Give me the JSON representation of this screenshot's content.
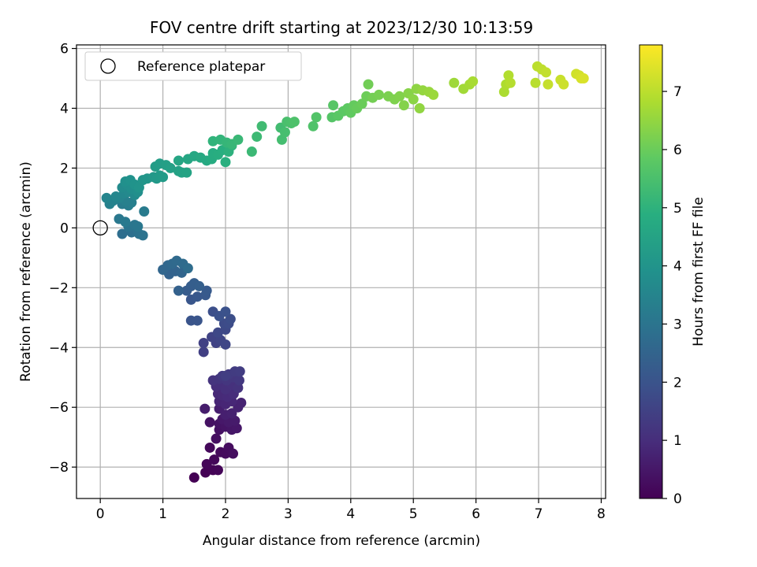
{
  "chart_data": {
    "type": "scatter",
    "title": "FOV centre drift starting at 2023/12/30 10:13:59",
    "xlabel": "Angular distance from reference (arcmin)",
    "ylabel": "Rotation from reference (arcmin)",
    "xlim": [
      -0.38,
      8.07
    ],
    "ylim": [
      -9.05,
      6.12
    ],
    "x_ticks": [
      0,
      1,
      2,
      3,
      4,
      5,
      6,
      7,
      8
    ],
    "y_ticks": [
      -8,
      -6,
      -4,
      -2,
      0,
      2,
      4,
      6
    ],
    "x_tick_labels": [
      "0",
      "1",
      "2",
      "3",
      "4",
      "5",
      "6",
      "7",
      "8"
    ],
    "y_tick_labels": [
      "−8",
      "−6",
      "−4",
      "−2",
      "0",
      "2",
      "4",
      "6"
    ],
    "grid": true,
    "colormap": "viridis",
    "colorbar": {
      "label": "Hours from first FF file",
      "range": [
        0,
        7.8
      ],
      "ticks": [
        0,
        1,
        2,
        3,
        4,
        5,
        6,
        7
      ],
      "tick_labels": [
        "0",
        "1",
        "2",
        "3",
        "4",
        "5",
        "6",
        "7"
      ]
    },
    "legend": {
      "position": "top-left",
      "entries": [
        "Reference platepar"
      ]
    },
    "reference_point": {
      "x": 0,
      "y": 0
    },
    "series": [
      {
        "points": [
          [
            1.5,
            -8.35,
            0.0
          ],
          [
            1.68,
            -8.18,
            0.03
          ],
          [
            1.8,
            -8.1,
            0.06
          ],
          [
            1.88,
            -8.1,
            0.08
          ],
          [
            1.7,
            -7.9,
            0.1
          ],
          [
            1.82,
            -7.75,
            0.13
          ],
          [
            1.75,
            -7.35,
            0.16
          ],
          [
            1.92,
            -7.5,
            0.19
          ],
          [
            2.0,
            -7.55,
            0.22
          ],
          [
            2.05,
            -7.35,
            0.25
          ],
          [
            2.12,
            -7.55,
            0.28
          ],
          [
            1.85,
            -7.05,
            0.31
          ],
          [
            1.9,
            -6.75,
            0.34
          ],
          [
            1.75,
            -6.5,
            0.37
          ],
          [
            1.9,
            -6.55,
            0.4
          ],
          [
            2.0,
            -6.65,
            0.43
          ],
          [
            2.1,
            -6.75,
            0.46
          ],
          [
            2.18,
            -6.7,
            0.49
          ],
          [
            1.95,
            -6.4,
            0.52
          ],
          [
            2.05,
            -6.5,
            0.55
          ],
          [
            2.15,
            -6.45,
            0.58
          ],
          [
            1.67,
            -6.05,
            0.61
          ],
          [
            1.9,
            -6.05,
            0.64
          ],
          [
            2.0,
            -6.25,
            0.67
          ],
          [
            2.1,
            -6.2,
            0.7
          ],
          [
            2.2,
            -6.0,
            0.73
          ],
          [
            2.25,
            -5.85,
            0.76
          ],
          [
            1.9,
            -5.8,
            0.79
          ],
          [
            2.0,
            -5.9,
            0.82
          ],
          [
            2.1,
            -5.8,
            0.85
          ],
          [
            1.88,
            -5.55,
            0.88
          ],
          [
            1.95,
            -5.6,
            0.91
          ],
          [
            2.03,
            -5.65,
            0.94
          ],
          [
            2.13,
            -5.55,
            0.97
          ],
          [
            1.85,
            -5.3,
            1.0
          ],
          [
            1.92,
            -5.25,
            1.03
          ],
          [
            2.0,
            -5.4,
            1.06
          ],
          [
            2.1,
            -5.25,
            1.09
          ],
          [
            2.2,
            -5.35,
            1.12
          ],
          [
            1.8,
            -5.1,
            1.15
          ],
          [
            1.9,
            -5.05,
            1.18
          ],
          [
            2.02,
            -5.1,
            1.21
          ],
          [
            2.12,
            -5.0,
            1.24
          ],
          [
            2.22,
            -5.1,
            1.27
          ],
          [
            1.95,
            -4.95,
            1.3
          ],
          [
            2.05,
            -4.9,
            1.33
          ],
          [
            2.15,
            -4.8,
            1.36
          ],
          [
            2.23,
            -4.8,
            1.39
          ],
          [
            2.0,
            -4.95,
            1.42
          ],
          [
            1.65,
            -4.15,
            1.45
          ],
          [
            1.65,
            -3.85,
            1.48
          ],
          [
            1.85,
            -3.85,
            1.52
          ],
          [
            1.78,
            -3.65,
            1.56
          ],
          [
            1.92,
            -3.75,
            1.6
          ],
          [
            2.0,
            -3.9,
            1.64
          ],
          [
            1.88,
            -3.5,
            1.68
          ],
          [
            2.0,
            -3.4,
            1.72
          ],
          [
            1.98,
            -3.2,
            1.76
          ],
          [
            2.05,
            -3.2,
            1.8
          ],
          [
            2.08,
            -3.05,
            1.84
          ],
          [
            1.8,
            -2.8,
            1.88
          ],
          [
            1.9,
            -2.95,
            1.92
          ],
          [
            2.0,
            -2.8,
            1.96
          ],
          [
            1.45,
            -3.1,
            2.0
          ],
          [
            1.55,
            -3.1,
            2.04
          ],
          [
            1.45,
            -2.4,
            2.08
          ],
          [
            1.55,
            -2.3,
            2.12
          ],
          [
            1.68,
            -2.25,
            2.16
          ],
          [
            1.7,
            -2.1,
            2.2
          ],
          [
            1.38,
            -2.1,
            2.24
          ],
          [
            1.45,
            -1.95,
            2.28
          ],
          [
            1.5,
            -1.85,
            2.32
          ],
          [
            1.58,
            -1.95,
            2.36
          ],
          [
            1.25,
            -2.1,
            2.4
          ],
          [
            1.1,
            -1.55,
            2.44
          ],
          [
            1.2,
            -1.45,
            2.48
          ],
          [
            1.3,
            -1.5,
            2.52
          ],
          [
            1.0,
            -1.4,
            2.56
          ],
          [
            1.08,
            -1.25,
            2.6
          ],
          [
            1.15,
            -1.2,
            2.64
          ],
          [
            1.22,
            -1.1,
            2.68
          ],
          [
            1.32,
            -1.2,
            2.72
          ],
          [
            1.4,
            -1.35,
            2.76
          ],
          [
            0.35,
            -0.2,
            2.8
          ],
          [
            0.5,
            -0.15,
            2.84
          ],
          [
            0.58,
            -0.05,
            2.88
          ],
          [
            0.62,
            -0.2,
            2.92
          ],
          [
            0.68,
            -0.25,
            2.96
          ],
          [
            0.45,
            0.05,
            3.0
          ],
          [
            0.55,
            0.1,
            3.04
          ],
          [
            0.6,
            0.05,
            3.08
          ],
          [
            0.3,
            0.3,
            3.12
          ],
          [
            0.4,
            0.2,
            3.16
          ],
          [
            0.7,
            0.55,
            3.2
          ],
          [
            0.35,
            0.8,
            3.24
          ],
          [
            0.45,
            0.75,
            3.28
          ],
          [
            0.5,
            0.85,
            3.32
          ],
          [
            0.4,
            0.9,
            3.36
          ],
          [
            0.15,
            0.8,
            3.4
          ],
          [
            0.2,
            0.9,
            3.44
          ],
          [
            0.3,
            1.0,
            3.48
          ],
          [
            0.1,
            1.0,
            3.52
          ],
          [
            0.25,
            1.05,
            3.56
          ],
          [
            0.38,
            1.15,
            3.6
          ],
          [
            0.45,
            1.2,
            3.64
          ],
          [
            0.55,
            1.1,
            3.68
          ],
          [
            0.35,
            1.35,
            3.72
          ],
          [
            0.42,
            1.45,
            3.76
          ],
          [
            0.5,
            1.3,
            3.8
          ],
          [
            0.6,
            1.2,
            3.84
          ],
          [
            0.4,
            1.55,
            3.88
          ],
          [
            0.48,
            1.6,
            3.92
          ],
          [
            0.55,
            1.45,
            3.96
          ],
          [
            0.62,
            1.35,
            4.0
          ],
          [
            0.68,
            1.6,
            4.04
          ],
          [
            0.75,
            1.65,
            4.08
          ],
          [
            0.85,
            1.7,
            4.12
          ],
          [
            0.9,
            1.65,
            4.16
          ],
          [
            0.95,
            1.75,
            4.2
          ],
          [
            1.0,
            1.7,
            4.24
          ],
          [
            0.88,
            2.05,
            4.28
          ],
          [
            0.95,
            2.15,
            4.32
          ],
          [
            1.05,
            2.1,
            4.36
          ],
          [
            1.12,
            2.0,
            4.4
          ],
          [
            1.25,
            1.9,
            4.44
          ],
          [
            1.3,
            1.85,
            4.48
          ],
          [
            1.38,
            1.85,
            4.52
          ],
          [
            1.25,
            2.25,
            4.56
          ],
          [
            1.4,
            2.3,
            4.6
          ],
          [
            1.5,
            2.4,
            4.64
          ],
          [
            1.6,
            2.35,
            4.68
          ],
          [
            1.7,
            2.25,
            4.72
          ],
          [
            1.78,
            2.3,
            4.76
          ],
          [
            1.8,
            2.5,
            4.8
          ],
          [
            1.88,
            2.45,
            4.84
          ],
          [
            1.95,
            2.6,
            4.88
          ],
          [
            2.0,
            2.2,
            4.92
          ],
          [
            2.05,
            2.55,
            4.96
          ],
          [
            2.1,
            2.75,
            5.0
          ],
          [
            1.8,
            2.9,
            5.04
          ],
          [
            1.92,
            2.95,
            5.08
          ],
          [
            2.02,
            2.85,
            5.12
          ],
          [
            2.1,
            2.8,
            5.16
          ],
          [
            2.2,
            2.95,
            5.2
          ],
          [
            2.42,
            2.55,
            5.24
          ],
          [
            2.5,
            3.05,
            5.28
          ],
          [
            2.58,
            3.4,
            5.32
          ],
          [
            2.88,
            3.35,
            5.36
          ],
          [
            2.9,
            2.95,
            5.4
          ],
          [
            2.95,
            3.2,
            5.44
          ],
          [
            2.98,
            3.55,
            5.48
          ],
          [
            3.05,
            3.5,
            5.52
          ],
          [
            3.1,
            3.55,
            5.56
          ],
          [
            3.4,
            3.4,
            5.6
          ],
          [
            3.45,
            3.7,
            5.64
          ],
          [
            3.7,
            3.7,
            5.68
          ],
          [
            3.72,
            4.1,
            5.72
          ],
          [
            3.8,
            3.75,
            5.76
          ],
          [
            3.88,
            3.9,
            5.8
          ],
          [
            3.95,
            4.0,
            5.84
          ],
          [
            4.0,
            3.85,
            5.88
          ],
          [
            4.05,
            4.1,
            5.92
          ],
          [
            4.1,
            4.0,
            5.96
          ],
          [
            4.18,
            4.15,
            6.0
          ],
          [
            4.25,
            4.4,
            6.04
          ],
          [
            4.28,
            4.8,
            6.08
          ],
          [
            4.35,
            4.35,
            6.12
          ],
          [
            4.45,
            4.45,
            6.16
          ],
          [
            4.6,
            4.4,
            6.2
          ],
          [
            4.7,
            4.3,
            6.24
          ],
          [
            4.78,
            4.4,
            6.28
          ],
          [
            4.85,
            4.1,
            6.32
          ],
          [
            4.92,
            4.5,
            6.36
          ],
          [
            5.0,
            4.3,
            6.4
          ],
          [
            5.05,
            4.65,
            6.44
          ],
          [
            5.1,
            4.0,
            6.48
          ],
          [
            5.15,
            4.6,
            6.52
          ],
          [
            5.25,
            4.55,
            6.56
          ],
          [
            5.32,
            4.45,
            6.6
          ],
          [
            5.65,
            4.85,
            6.64
          ],
          [
            5.8,
            4.65,
            6.68
          ],
          [
            5.9,
            4.8,
            6.72
          ],
          [
            5.95,
            4.9,
            6.76
          ],
          [
            6.45,
            4.55,
            6.8
          ],
          [
            6.48,
            4.8,
            6.84
          ],
          [
            6.52,
            5.1,
            6.88
          ],
          [
            6.55,
            4.85,
            6.92
          ],
          [
            6.95,
            4.85,
            6.96
          ],
          [
            6.98,
            5.4,
            7.0
          ],
          [
            7.05,
            5.3,
            7.04
          ],
          [
            7.12,
            5.2,
            7.08
          ],
          [
            7.15,
            4.8,
            7.12
          ],
          [
            7.35,
            4.95,
            7.16
          ],
          [
            7.4,
            4.8,
            7.2
          ],
          [
            7.6,
            5.15,
            7.24
          ],
          [
            7.65,
            5.1,
            7.28
          ],
          [
            7.68,
            5.0,
            7.32
          ],
          [
            7.72,
            5.0,
            7.36
          ]
        ]
      }
    ]
  }
}
